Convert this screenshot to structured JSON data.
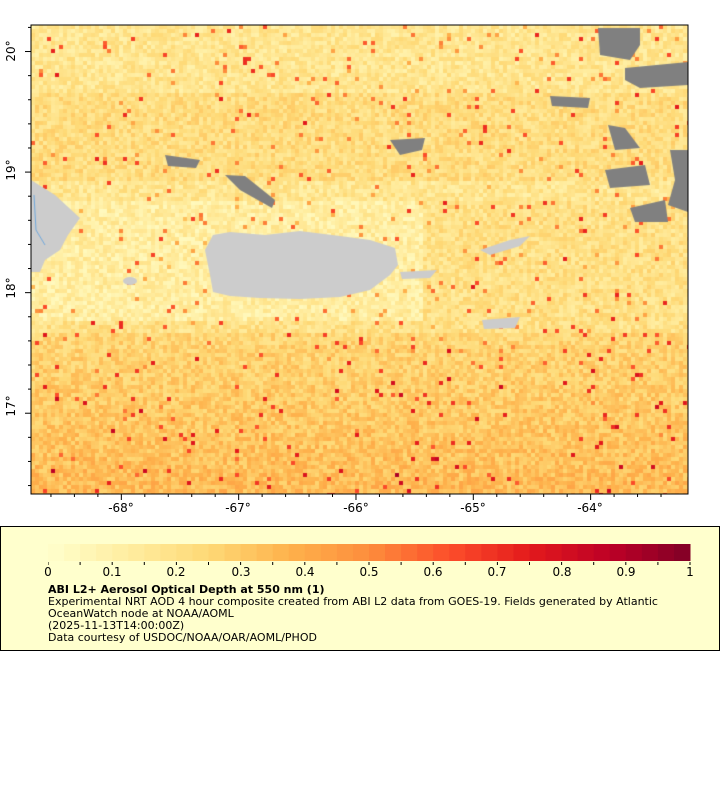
{
  "map": {
    "x_ticks": [
      "-68°",
      "-67°",
      "-66°",
      "-65°",
      "-64°"
    ],
    "x_tick_lons": [
      -68,
      -67,
      -66,
      -65,
      -64
    ],
    "y_ticks": [
      "20°",
      "19°",
      "18°",
      "17°"
    ],
    "y_tick_lats": [
      20,
      19,
      18,
      17
    ],
    "lon_range": [
      -68.77,
      -63.17
    ],
    "lat_range": [
      16.33,
      20.22
    ],
    "land_color": "#cccccc",
    "missing_color": "#808080",
    "river_color": "#6fa8dc"
  },
  "legend": {
    "colorbar": {
      "range": [
        0,
        1
      ],
      "segments": 40,
      "colormap": [
        "#ffffcc",
        "#ffeda0",
        "#fed976",
        "#feb24c",
        "#fd8d3c",
        "#fc4e2a",
        "#e31a1c",
        "#bd0026",
        "#800026"
      ],
      "tick_labels": [
        "0",
        "0.1",
        "0.2",
        "0.3",
        "0.4",
        "0.5",
        "0.6",
        "0.7",
        "0.8",
        "0.9",
        "1"
      ]
    },
    "title": "ABI L2+ Aerosol Optical Depth at 550 nm (1)",
    "description_line1": "Experimental NRT AOD 4 hour composite created from ABI L2 data from GOES-19. Fields generated by Atlantic",
    "description_line2": "OceanWatch node at NOAA/AOML",
    "time": "(2025-11-13T14:00:00Z)",
    "credit": "Data courtesy of USDOC/NOAA/OAR/AOML/PHOD"
  }
}
